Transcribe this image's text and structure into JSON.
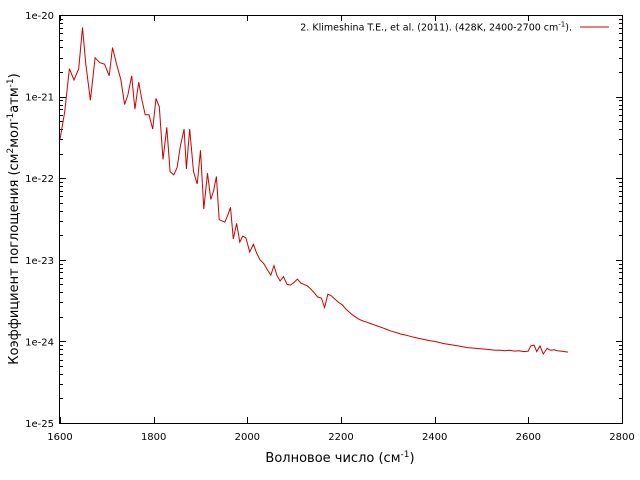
{
  "chart_data": {
    "type": "line",
    "xlabel": "Волновое число (см",
    "xlabel_sup": "-1",
    "xlabel_end": ")",
    "ylabel_parts": [
      "Коэффициент поглощения (см",
      "2",
      "мол",
      "-1",
      "атм",
      "-1",
      ")"
    ],
    "xlim": [
      1600,
      2800
    ],
    "ylim": [
      1e-25,
      1e-20
    ],
    "yscale": "log",
    "x_ticks": [
      "1600",
      "1800",
      "2000",
      "2200",
      "2400",
      "2600",
      "2800"
    ],
    "y_ticks": [
      "1e-25",
      "1e-24",
      "1e-23",
      "1e-22",
      "1e-21",
      "1e-20"
    ],
    "grid": false,
    "legend_position": "top-right",
    "series": [
      {
        "name": "2. Klimeshina T.E., et al. (2011). (428K, 2400-2700 cm",
        "name_sup": "-1",
        "name_end": ").",
        "color": "#cc0000",
        "x": [
          1600,
          1610,
          1620,
          1630,
          1640,
          1648,
          1655,
          1665,
          1675,
          1685,
          1695,
          1705,
          1712,
          1720,
          1730,
          1738,
          1745,
          1753,
          1760,
          1768,
          1775,
          1782,
          1790,
          1798,
          1805,
          1812,
          1820,
          1828,
          1835,
          1843,
          1850,
          1857,
          1865,
          1870,
          1877,
          1885,
          1893,
          1900,
          1907,
          1915,
          1922,
          1928,
          1934,
          1940,
          1946,
          1952,
          1958,
          1964,
          1970,
          1977,
          1984,
          1990,
          1997,
          2005,
          2013,
          2020,
          2027,
          2035,
          2043,
          2050,
          2057,
          2063,
          2070,
          2077,
          2085,
          2092,
          2100,
          2107,
          2114,
          2121,
          2128,
          2135,
          2142,
          2150,
          2158,
          2165,
          2172,
          2180,
          2187,
          2195,
          2203,
          2210,
          2217,
          2225,
          2233,
          2240,
          2247,
          2255,
          2262,
          2270,
          2277,
          2284,
          2291,
          2298,
          2305,
          2312,
          2320,
          2328,
          2336,
          2344,
          2352,
          2360,
          2370,
          2380,
          2390,
          2400,
          2410,
          2420,
          2430,
          2440,
          2450,
          2460,
          2470,
          2480,
          2490,
          2500,
          2510,
          2520,
          2530,
          2540,
          2550,
          2560,
          2570,
          2580,
          2590,
          2600,
          2605,
          2612,
          2618,
          2625,
          2632,
          2640,
          2647,
          2655,
          2662,
          2670,
          2677,
          2685
        ],
        "y": [
          3e-22,
          6.5e-22,
          2.2e-21,
          1.6e-21,
          2.2e-21,
          7e-21,
          2.5e-21,
          9e-22,
          3e-21,
          2.6e-21,
          2.5e-21,
          1.8e-21,
          4e-21,
          2.6e-21,
          1.6e-21,
          8e-22,
          1.05e-21,
          1.8e-21,
          7e-22,
          1.5e-21,
          9e-22,
          6e-22,
          6e-22,
          4e-22,
          9.5e-22,
          7.5e-22,
          1.7e-22,
          4.2e-22,
          1.2e-22,
          1.1e-22,
          1.35e-22,
          2.5e-22,
          4e-22,
          1.3e-22,
          4e-22,
          1.2e-22,
          8.5e-23,
          2.2e-22,
          4.2e-23,
          1.15e-22,
          5.5e-23,
          7e-23,
          1.05e-22,
          3.1e-23,
          3e-23,
          2.9e-23,
          3.5e-23,
          4.4e-23,
          1.8e-23,
          2.8e-23,
          1.65e-23,
          1.95e-23,
          1.85e-23,
          1.25e-23,
          1.55e-23,
          1.2e-23,
          1e-23,
          9e-24,
          7.5e-24,
          6.5e-24,
          8.5e-24,
          6.5e-24,
          5.5e-24,
          6.2e-24,
          5e-24,
          4.9e-24,
          5.3e-24,
          5.8e-24,
          5.2e-24,
          5e-24,
          4.8e-24,
          4.4e-24,
          4e-24,
          3.5e-24,
          3.4e-24,
          2.6e-24,
          3.8e-24,
          3.6e-24,
          3.3e-24,
          3e-24,
          2.8e-24,
          2.5e-24,
          2.3e-24,
          2.1e-24,
          1.95e-24,
          1.85e-24,
          1.78e-24,
          1.72e-24,
          1.66e-24,
          1.6e-24,
          1.55e-24,
          1.5e-24,
          1.45e-24,
          1.4e-24,
          1.35e-24,
          1.31e-24,
          1.27e-24,
          1.23e-24,
          1.2e-24,
          1.17e-24,
          1.14e-24,
          1.11e-24,
          1.08e-24,
          1.05e-24,
          1.02e-24,
          1e-24,
          9.7e-25,
          9.4e-25,
          9.2e-25,
          9e-25,
          8.8e-25,
          8.6e-25,
          8.4e-25,
          8.3e-25,
          8.2e-25,
          8.1e-25,
          8e-25,
          7.9e-25,
          7.8e-25,
          7.8e-25,
          7.7e-25,
          7.8e-25,
          7.6e-25,
          7.7e-25,
          7.5e-25,
          7.6e-25,
          8.8e-25,
          9e-25,
          7.5e-25,
          8.8e-25,
          7e-25,
          8.2e-25,
          7.8e-25,
          7.9e-25,
          7.7e-25,
          7.6e-25,
          7.5e-25,
          7.4e-25
        ]
      }
    ]
  }
}
